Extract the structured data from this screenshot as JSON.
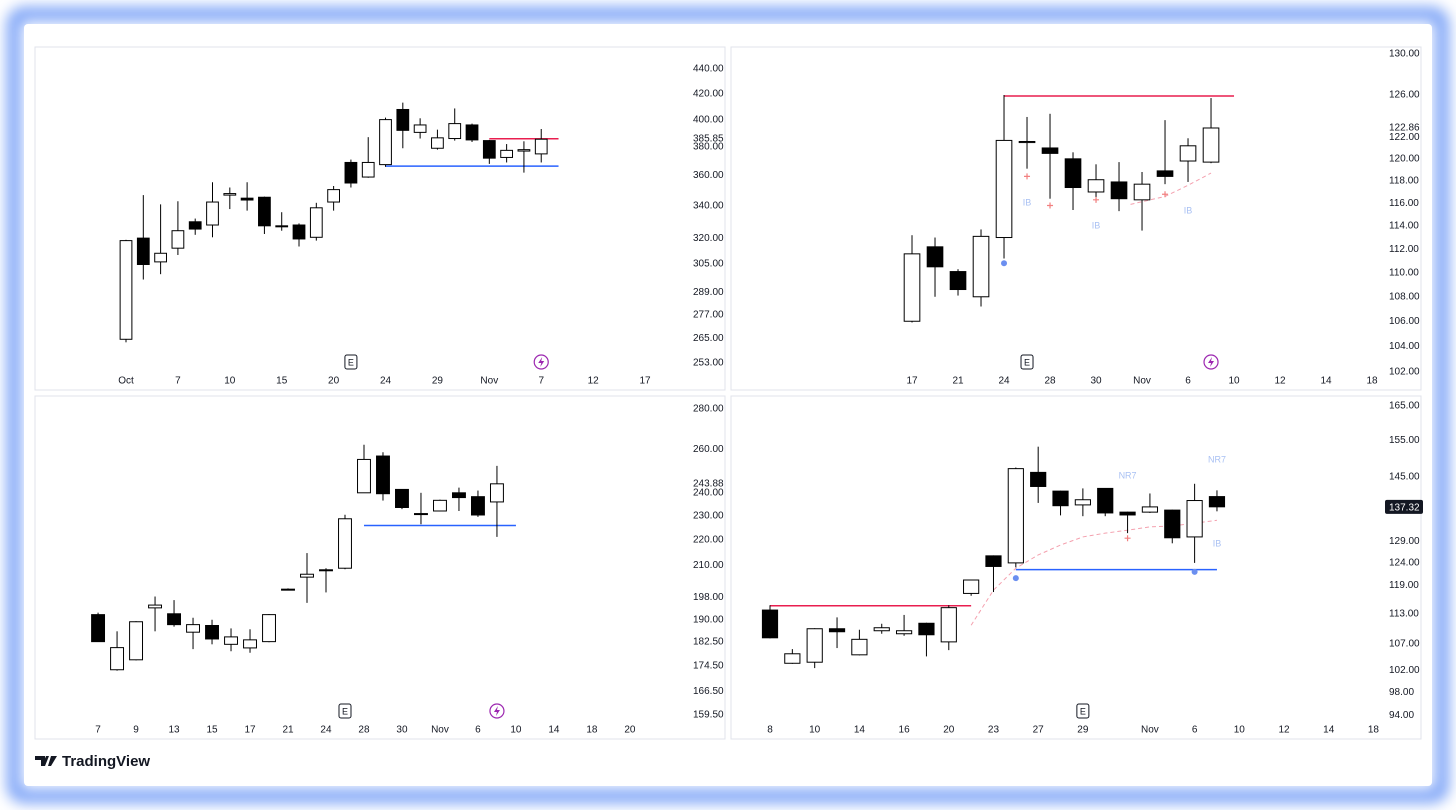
{
  "branding": "TradingView",
  "chart_data": [
    {
      "type": "candlestick",
      "log_scale": true,
      "up_color": "#ffffff",
      "down_color": "#000000",
      "wick_color": "#000000",
      "ylim": [
        248.7,
        458.6
      ],
      "xlim": [
        -5.26,
        32.31
      ],
      "yticks": [
        {
          "value": 440,
          "label": "440.00"
        },
        {
          "value": 420,
          "label": "420.00"
        },
        {
          "value": 400,
          "label": "400.00"
        },
        {
          "value": 385.85,
          "label": "385.85"
        },
        {
          "value": 380,
          "label": "380.00"
        },
        {
          "value": 360,
          "label": "360.00"
        },
        {
          "value": 340,
          "label": "340.00"
        },
        {
          "value": 320,
          "label": "320.00"
        },
        {
          "value": 305,
          "label": "305.00"
        },
        {
          "value": 289,
          "label": "289.00"
        },
        {
          "value": 277,
          "label": "277.00"
        },
        {
          "value": 265,
          "label": "265.00"
        },
        {
          "value": 253,
          "label": "253.00"
        }
      ],
      "xticks": [
        {
          "value": 0,
          "label": "Oct"
        },
        {
          "value": 3,
          "label": "7"
        },
        {
          "value": 6,
          "label": "10"
        },
        {
          "value": 9,
          "label": "15"
        },
        {
          "value": 12,
          "label": "20"
        },
        {
          "value": 15,
          "label": "24"
        },
        {
          "value": 18,
          "label": "29"
        },
        {
          "value": 21,
          "label": "Nov"
        },
        {
          "value": 24,
          "label": "7"
        },
        {
          "value": 27,
          "label": "12"
        },
        {
          "value": 30,
          "label": "17"
        }
      ],
      "x": [
        0,
        1,
        2,
        3,
        4,
        5,
        6,
        7,
        8,
        9,
        10,
        11,
        12,
        13,
        14,
        15,
        16,
        17,
        18,
        19,
        20,
        21,
        22,
        23,
        24
      ],
      "open": [
        264.5,
        320,
        306,
        314,
        330,
        328,
        347,
        345,
        345.6,
        327.5,
        328,
        320.5,
        342.5,
        369,
        359,
        367.5,
        407.7,
        390.5,
        379,
        386,
        396,
        384.5,
        372.5,
        377,
        375
      ],
      "high": [
        319,
        347,
        341,
        343,
        332,
        355.5,
        352,
        355.5,
        346,
        336,
        329,
        342,
        353,
        371,
        387,
        401.5,
        413,
        401,
        392.5,
        408.5,
        397,
        385,
        382,
        384,
        393
      ],
      "low": [
        263,
        296,
        299,
        310,
        322,
        320.5,
        338,
        337,
        322.5,
        324.5,
        315,
        318.5,
        337,
        352,
        358.5,
        366,
        379,
        386,
        378,
        384.5,
        383.5,
        368,
        369,
        362,
        369
      ],
      "close": [
        318.5,
        304.5,
        311,
        324.5,
        325.5,
        342.5,
        348,
        343.8,
        327.5,
        327,
        319.5,
        338.8,
        350.6,
        355,
        369,
        400,
        392,
        396,
        386.5,
        397,
        385,
        372,
        377.5,
        378,
        385.5
      ],
      "levels": [
        {
          "value": 385.85,
          "color": "#e91e4f",
          "x_range": [
            21,
            25
          ]
        },
        {
          "value": 366.5,
          "color": "#2962ff",
          "x_range": [
            15,
            25
          ]
        }
      ],
      "events": [
        {
          "label": "E",
          "x": 13
        }
      ],
      "lightning_x": 24
    },
    {
      "type": "candlestick",
      "log_scale": true,
      "up_color": "#ffffff",
      "down_color": "#000000",
      "wick_color": "#000000",
      "ylim": [
        101.97,
        130.7
      ],
      "xlim": [
        -7.87,
        20.39
      ],
      "yticks": [
        {
          "value": 130,
          "label": "130.00"
        },
        {
          "value": 126,
          "label": "126.00"
        },
        {
          "value": 122.86,
          "label": "122.86"
        },
        {
          "value": 122,
          "label": "122.00"
        },
        {
          "value": 120,
          "label": "120.00"
        },
        {
          "value": 118,
          "label": "118.00"
        },
        {
          "value": 116,
          "label": "116.00"
        },
        {
          "value": 114,
          "label": "114.00"
        },
        {
          "value": 112,
          "label": "112.00"
        },
        {
          "value": 110,
          "label": "110.00"
        },
        {
          "value": 108,
          "label": "108.00"
        },
        {
          "value": 106,
          "label": "106.00"
        },
        {
          "value": 104,
          "label": "104.00"
        },
        {
          "value": 102,
          "label": "102.00"
        }
      ],
      "xticks": [
        {
          "value": 0,
          "label": "17"
        },
        {
          "value": 2,
          "label": "21"
        },
        {
          "value": 4,
          "label": "24"
        },
        {
          "value": 6,
          "label": "28"
        },
        {
          "value": 8,
          "label": "30"
        },
        {
          "value": 10,
          "label": "Nov"
        },
        {
          "value": 12,
          "label": "6"
        },
        {
          "value": 14,
          "label": "10"
        },
        {
          "value": 16,
          "label": "12"
        },
        {
          "value": 18,
          "label": "14"
        },
        {
          "value": 20,
          "label": "18"
        }
      ],
      "x": [
        0,
        1,
        2,
        3,
        4,
        5,
        6,
        7,
        8,
        9,
        10,
        11,
        12,
        13
      ],
      "open": [
        106,
        112.2,
        110.1,
        108,
        113,
        121.5,
        121,
        120,
        117,
        117.9,
        116.3,
        118.9,
        119.8,
        119.7
      ],
      "high": [
        113.2,
        113,
        110.3,
        113.7,
        126,
        123.9,
        124.2,
        120.6,
        119.5,
        119.7,
        118.8,
        123.6,
        121.9,
        125.7
      ],
      "low": [
        105.9,
        108,
        108.1,
        107.2,
        111.2,
        119.1,
        116.4,
        115.4,
        116.1,
        115.3,
        113.6,
        117.7,
        117.9,
        119.6
      ],
      "close": [
        111.6,
        110.5,
        108.6,
        113.1,
        121.7,
        121.6,
        120.5,
        117.4,
        118.1,
        116.4,
        117.7,
        118.4,
        121.2,
        122.86
      ],
      "levels": [
        {
          "value": 125.9,
          "color": "#e91e4f",
          "x_range": [
            4,
            14
          ]
        }
      ],
      "ma": {
        "color": "#f4a0ae",
        "x": [
          9.5,
          11,
          12,
          13
        ],
        "values": [
          115.9,
          116.6,
          117.6,
          118.7
        ]
      },
      "plus_markers": {
        "color": "#f28080",
        "x": [
          5,
          6,
          8,
          11
        ],
        "y": [
          118.4,
          115.8,
          116.3,
          116.8
        ]
      },
      "pivot_dots": {
        "color": "#6b8ff0",
        "x": [
          4
        ],
        "y": [
          110.8
        ]
      },
      "annotations": [
        {
          "text": "IB",
          "x": 5,
          "y": 116
        },
        {
          "text": "IB",
          "x": 8,
          "y": 114
        },
        {
          "text": "IB",
          "x": 12,
          "y": 115.3
        }
      ],
      "events": [
        {
          "label": "E",
          "x": 5
        }
      ],
      "lightning_x": 13
    },
    {
      "type": "candlestick",
      "log_scale": true,
      "up_color": "#ffffff",
      "down_color": "#000000",
      "wick_color": "#000000",
      "ylim": [
        157.7,
        286.8
      ],
      "xlim": [
        -3.32,
        30.9
      ],
      "yticks": [
        {
          "value": 280,
          "label": "280.00"
        },
        {
          "value": 260,
          "label": "260.00"
        },
        {
          "value": 243.88,
          "label": "243.88"
        },
        {
          "value": 240,
          "label": "240.00"
        },
        {
          "value": 230,
          "label": "230.00"
        },
        {
          "value": 220,
          "label": "220.00"
        },
        {
          "value": 210,
          "label": "210.00"
        },
        {
          "value": 198,
          "label": "198.00"
        },
        {
          "value": 190,
          "label": "190.00"
        },
        {
          "value": 182.5,
          "label": "182.50"
        },
        {
          "value": 174.5,
          "label": "174.50"
        },
        {
          "value": 166.5,
          "label": "166.50"
        },
        {
          "value": 159.5,
          "label": "159.50"
        }
      ],
      "xticks": [
        {
          "value": 0,
          "label": "7"
        },
        {
          "value": 2,
          "label": "9"
        },
        {
          "value": 4,
          "label": "13"
        },
        {
          "value": 6,
          "label": "15"
        },
        {
          "value": 8,
          "label": "17"
        },
        {
          "value": 10,
          "label": "21"
        },
        {
          "value": 12,
          "label": "24"
        },
        {
          "value": 14,
          "label": "28"
        },
        {
          "value": 16,
          "label": "30"
        },
        {
          "value": 18,
          "label": "Nov"
        },
        {
          "value": 20,
          "label": "6"
        },
        {
          "value": 22,
          "label": "10"
        },
        {
          "value": 24,
          "label": "14"
        },
        {
          "value": 26,
          "label": "18"
        },
        {
          "value": 28,
          "label": "20"
        }
      ],
      "x": [
        0,
        1,
        2,
        3,
        4,
        5,
        6,
        7,
        8,
        9,
        10,
        11,
        12,
        13,
        14,
        15,
        16,
        17,
        18,
        19,
        20,
        21
      ],
      "open": [
        191.8,
        173.3,
        176.5,
        194.2,
        192.1,
        185.7,
        188,
        181.6,
        180.4,
        182.5,
        201,
        205.5,
        208,
        208.9,
        240,
        256.8,
        241.5,
        230.8,
        232.1,
        240,
        238.3,
        236
      ],
      "high": [
        192.5,
        186,
        189.5,
        198.3,
        197,
        190.7,
        190,
        187,
        186.7,
        192,
        201.3,
        214.8,
        208.9,
        230.5,
        262.2,
        258.6,
        241.6,
        240,
        237,
        242.3,
        241,
        252.2
      ],
      "low": [
        182.4,
        173,
        176.3,
        186,
        187.6,
        180,
        181.6,
        179.3,
        178.8,
        182.3,
        200.8,
        196,
        199.8,
        208.5,
        240,
        236.6,
        232.9,
        226.5,
        231.9,
        232.1,
        229.6,
        221.3
      ],
      "close": [
        182.5,
        180.5,
        189.3,
        195.2,
        188.3,
        188.3,
        183.4,
        184.1,
        183.1,
        191.8,
        201,
        206.6,
        208.3,
        228.8,
        255.2,
        239.6,
        233.6,
        231,
        236.7,
        237.9,
        230.4,
        244
      ],
      "levels": [
        {
          "value": 226,
          "color": "#2962ff",
          "x_range": [
            14,
            22
          ]
        }
      ],
      "events": [
        {
          "label": "E",
          "x": 13
        }
      ],
      "lightning_x": 21
    },
    {
      "type": "candlestick",
      "log_scale": true,
      "up_color": "#ffffff",
      "down_color": "#000000",
      "wick_color": "#000000",
      "ylim": [
        93,
        168
      ],
      "xlim": [
        -1.745,
        27.34
      ],
      "yticks": [
        {
          "value": 165,
          "label": "165.00"
        },
        {
          "value": 155,
          "label": "155.00"
        },
        {
          "value": 145,
          "label": "145.00"
        },
        {
          "value": 129,
          "label": "129.00"
        },
        {
          "value": 124,
          "label": "124.00"
        },
        {
          "value": 119,
          "label": "119.00"
        },
        {
          "value": 113,
          "label": "113.00"
        },
        {
          "value": 107,
          "label": "107.00"
        },
        {
          "value": 102,
          "label": "102.00"
        },
        {
          "value": 98,
          "label": "98.00"
        },
        {
          "value": 94,
          "label": "94.00"
        }
      ],
      "last_price": {
        "value": 137.32,
        "label": "137.32"
      },
      "xticks": [
        {
          "value": 0,
          "label": "8"
        },
        {
          "value": 2,
          "label": "10"
        },
        {
          "value": 4,
          "label": "14"
        },
        {
          "value": 6,
          "label": "16"
        },
        {
          "value": 8,
          "label": "20"
        },
        {
          "value": 10,
          "label": "23"
        },
        {
          "value": 12,
          "label": "27"
        },
        {
          "value": 14,
          "label": "29"
        },
        {
          "value": 17,
          "label": "Nov"
        },
        {
          "value": 19,
          "label": "6"
        },
        {
          "value": 21,
          "label": "10"
        },
        {
          "value": 23,
          "label": "12"
        },
        {
          "value": 25,
          "label": "14"
        },
        {
          "value": 27,
          "label": "18"
        }
      ],
      "x": [
        0,
        1,
        2,
        3,
        4,
        5,
        6,
        7,
        8,
        9,
        10,
        11,
        12,
        13,
        14,
        15,
        16,
        17,
        18,
        19,
        20
      ],
      "open": [
        113.8,
        103.3,
        103.5,
        110,
        104.9,
        109.6,
        109,
        111.1,
        107.4,
        117.3,
        125.6,
        124,
        146.2,
        141.3,
        137.8,
        142,
        136,
        136,
        136.5,
        130,
        139.9
      ],
      "high": [
        114.8,
        106,
        110.1,
        112.3,
        109.8,
        111,
        112.8,
        111.2,
        114.8,
        120.3,
        125.7,
        147.5,
        153.2,
        141.4,
        142,
        142.1,
        136.1,
        140.7,
        136.6,
        143.2,
        141.5
      ],
      "low": [
        108.1,
        103.2,
        102.4,
        106.2,
        104.8,
        109,
        108.6,
        104.6,
        105.8,
        116.8,
        117.6,
        123,
        138.3,
        135.2,
        135,
        135,
        130.9,
        135.8,
        128.5,
        124,
        136.2
      ],
      "close": [
        108.2,
        105.1,
        110,
        109.4,
        107.9,
        110.2,
        109.6,
        108.8,
        114.3,
        120.2,
        123.2,
        147.2,
        142.5,
        137.6,
        139.1,
        135.8,
        135.3,
        137.3,
        129.8,
        138.9,
        137.32
      ],
      "levels": [
        {
          "value": 114.7,
          "color": "#e91e4f",
          "x_range": [
            0,
            9
          ]
        },
        {
          "value": 122.5,
          "color": "#2962ff",
          "x_range": [
            11,
            20
          ]
        }
      ],
      "ma": {
        "color": "#f4a0ae",
        "x": [
          9,
          10,
          11,
          12,
          13,
          14,
          15,
          16,
          17,
          18,
          19,
          20
        ],
        "values": [
          110.7,
          118,
          122.8,
          125.8,
          128.1,
          130,
          130.9,
          131.6,
          132.4,
          132.6,
          133.3,
          134
        ]
      },
      "plus_markers": {
        "color": "#f28080",
        "x": [
          16
        ],
        "y": [
          129.7
        ]
      },
      "pivot_dots": {
        "color": "#6b8ff0",
        "x": [
          11,
          19
        ],
        "y": [
          120.6,
          122
        ]
      },
      "annotations": [
        {
          "text": "NR7",
          "x": 16,
          "y": 145.2
        },
        {
          "text": "NR7",
          "x": 20,
          "y": 149.5
        },
        {
          "text": "IB",
          "x": 20,
          "y": 128.3
        }
      ],
      "events": [
        {
          "label": "E",
          "x": 14
        }
      ]
    }
  ]
}
